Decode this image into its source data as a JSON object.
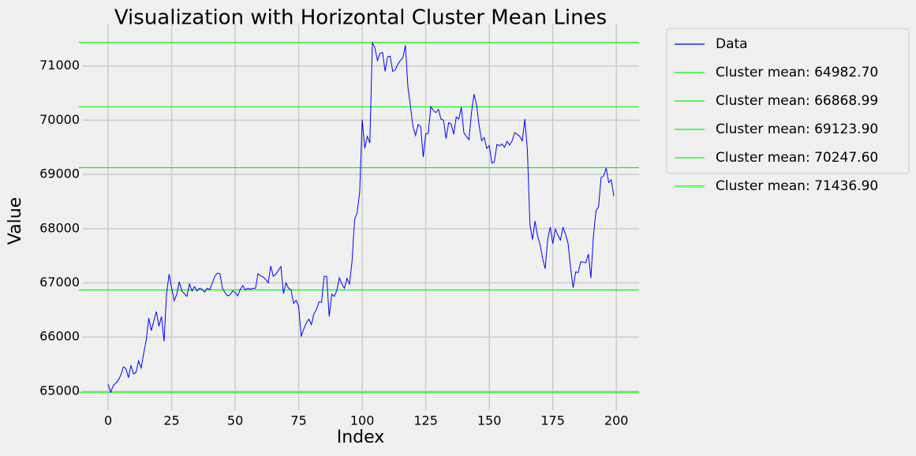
{
  "chart_data": {
    "type": "line",
    "title": "Visualization with Horizontal Cluster Mean Lines",
    "xlabel": "Index",
    "ylabel": "Value",
    "xlim": [
      -9.95,
      208.95
    ],
    "ylim": [
      64650,
      71780
    ],
    "xticks": [
      0,
      25,
      50,
      75,
      100,
      125,
      150,
      175,
      200
    ],
    "yticks": [
      65000,
      66000,
      67000,
      68000,
      69000,
      70000,
      71000
    ],
    "grid": true,
    "legend": "outside-upper-right",
    "series": [
      {
        "name": "Data",
        "color": "#0000ff",
        "values": [
          65130,
          64983,
          65100,
          65150,
          65200,
          65300,
          65450,
          65420,
          65250,
          65480,
          65320,
          65350,
          65560,
          65430,
          65700,
          65950,
          66350,
          66120,
          66300,
          66470,
          66200,
          66380,
          65920,
          66800,
          67160,
          66900,
          66670,
          66790,
          67020,
          66850,
          66800,
          66750,
          66980,
          66850,
          66930,
          66850,
          66900,
          66880,
          66830,
          66900,
          66870,
          67000,
          67120,
          67180,
          67170,
          66900,
          66820,
          66760,
          66780,
          66850,
          66820,
          66760,
          66880,
          66950,
          66870,
          66900,
          66880,
          66900,
          66900,
          67170,
          67130,
          67110,
          67060,
          67000,
          67310,
          67120,
          67160,
          67230,
          67300,
          66800,
          67000,
          66900,
          66870,
          66620,
          66680,
          66560,
          66010,
          66150,
          66260,
          66330,
          66230,
          66430,
          66510,
          66650,
          66640,
          67120,
          67120,
          66380,
          66790,
          66750,
          66860,
          67090,
          66980,
          66900,
          67080,
          66980,
          67400,
          68170,
          68290,
          68670,
          70010,
          69480,
          69700,
          69580,
          71437,
          71330,
          71100,
          71230,
          71250,
          70900,
          71170,
          71180,
          70900,
          70930,
          71030,
          71100,
          71150,
          71380,
          70600,
          70250,
          69870,
          69720,
          69920,
          69880,
          69320,
          69750,
          69760,
          70250,
          70180,
          70140,
          70200,
          70020,
          70000,
          69660,
          69950,
          69930,
          69740,
          70060,
          70020,
          70240,
          69770,
          69700,
          69640,
          70140,
          70480,
          70280,
          69900,
          69620,
          69680,
          69480,
          69530,
          69210,
          69230,
          69550,
          69530,
          69560,
          69500,
          69610,
          69540,
          69620,
          69770,
          69740,
          69700,
          69620,
          70020,
          69450,
          68080,
          67800,
          68140,
          67870,
          67700,
          67450,
          67260,
          67810,
          68030,
          67720,
          67990,
          67880,
          67790,
          68020,
          67900,
          67730,
          67280,
          66910,
          67200,
          67190,
          67390,
          67380,
          67370,
          67530,
          67090,
          67870,
          68330,
          68400,
          68940,
          68970,
          69120,
          68850,
          68900,
          68600
        ]
      }
    ],
    "hlines": [
      {
        "name": "Cluster mean: 64982.70",
        "color": "#00ff00",
        "value": 64982.7
      },
      {
        "name": "Cluster mean: 66868.99",
        "color": "#00ff00",
        "value": 66868.99
      },
      {
        "name": "Cluster mean: 69123.90",
        "color": "#00ff00",
        "value": 69123.9
      },
      {
        "name": "Cluster mean: 70247.60",
        "color": "#00ff00",
        "value": 70247.6
      },
      {
        "name": "Cluster mean: 71436.90",
        "color": "#00ff00",
        "value": 71436.9
      }
    ]
  }
}
